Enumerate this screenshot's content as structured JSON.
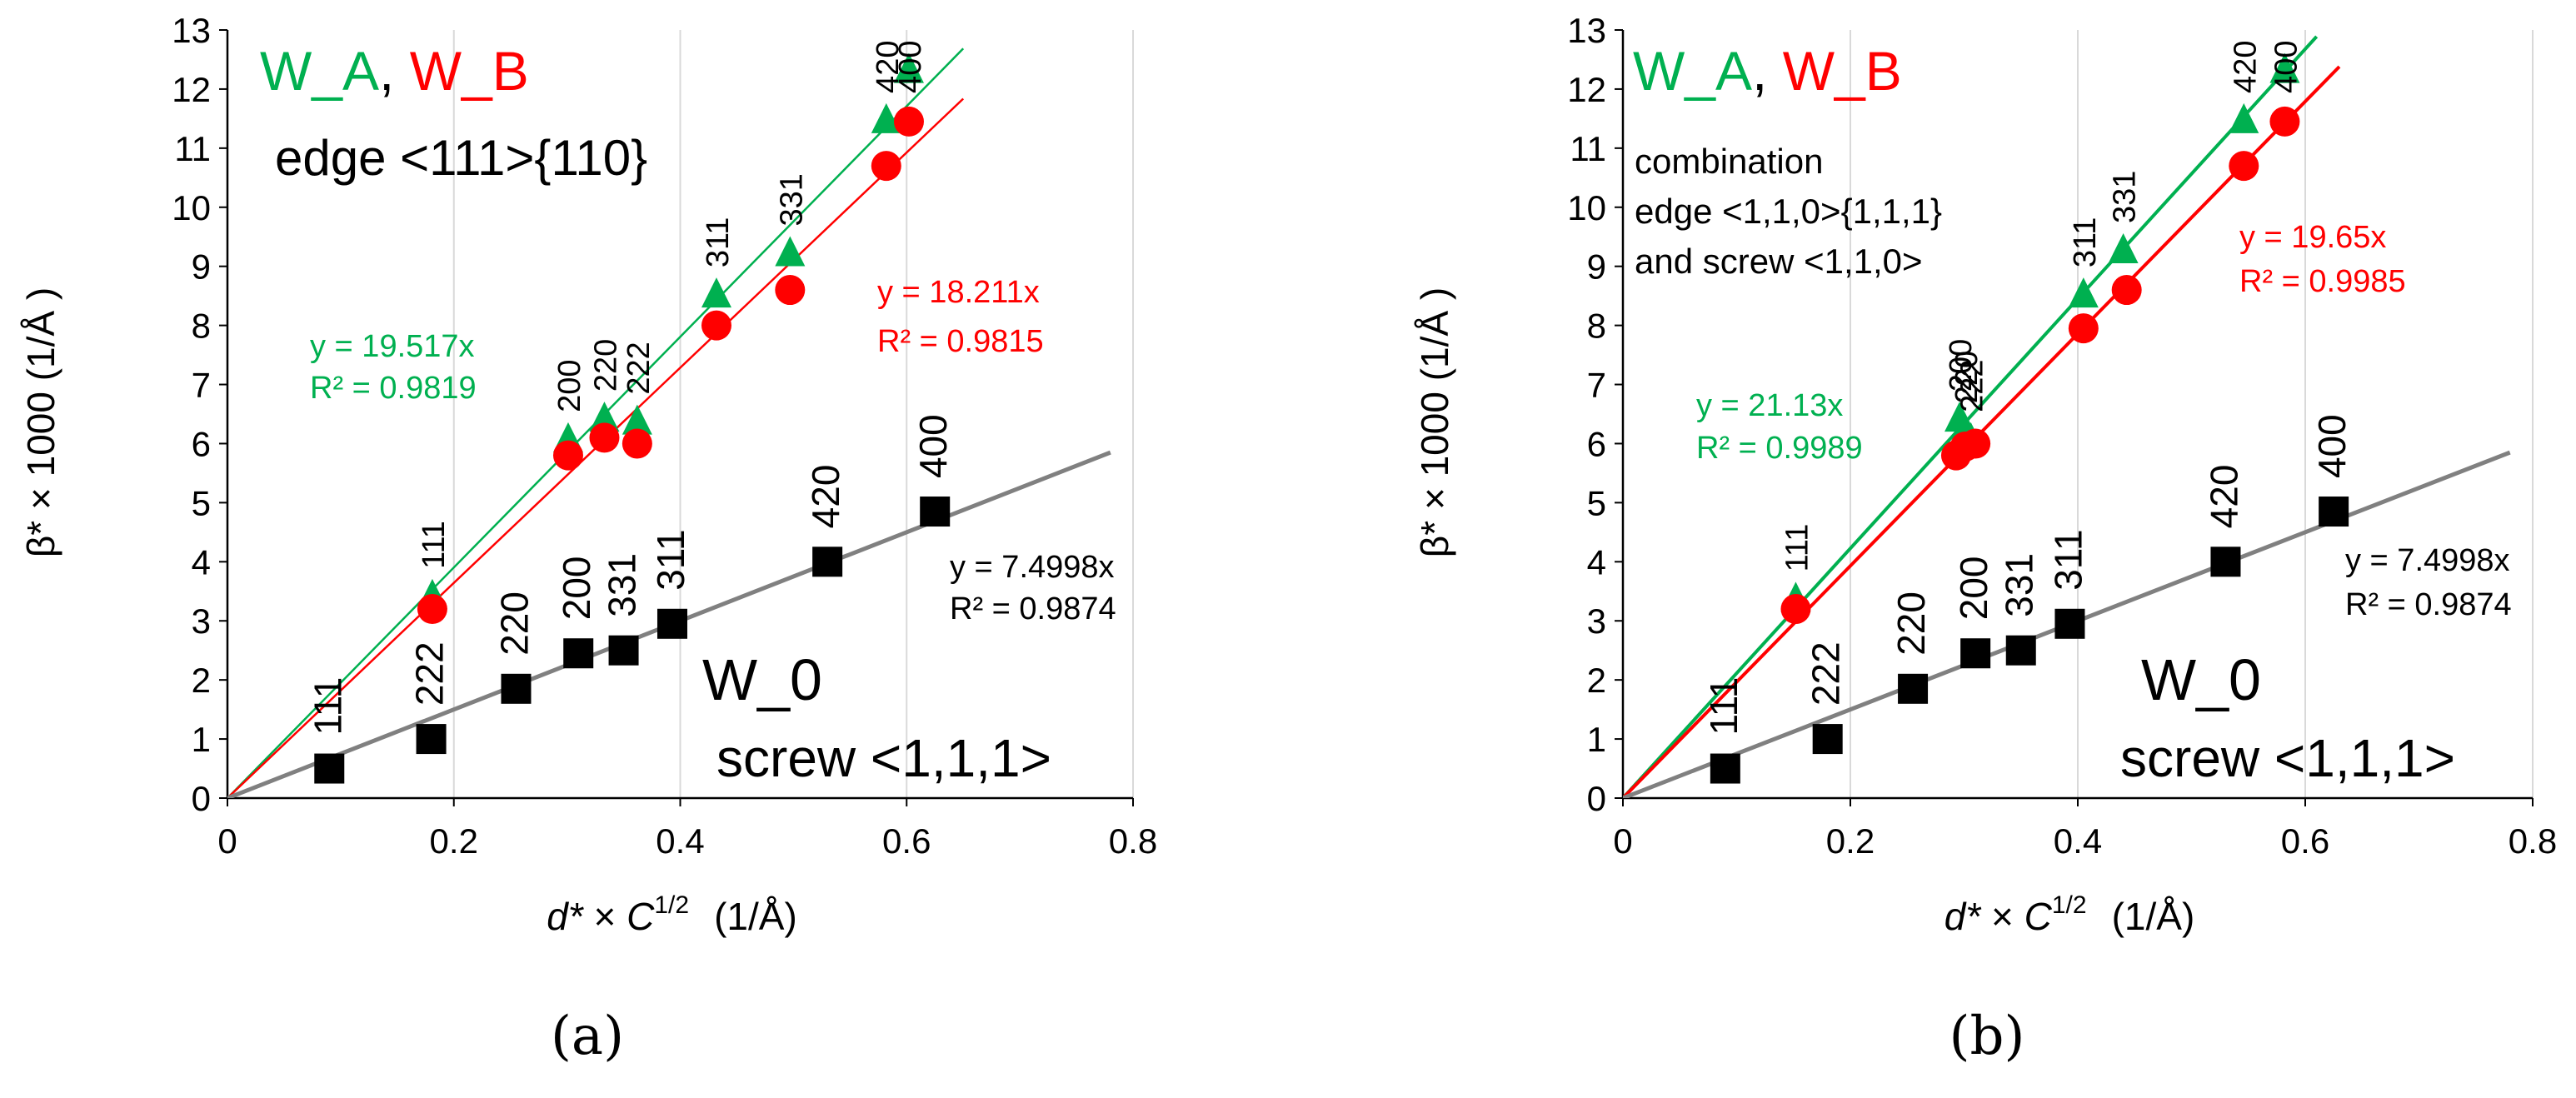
{
  "colors": {
    "green": "#00b050",
    "red": "#ff0000",
    "black": "#000000",
    "gray": "#808080",
    "grid": "#d9d9d9"
  },
  "chart_data": [
    {
      "type": "scatter",
      "panel_label": "(a)",
      "xlabel": {
        "var": "d*",
        "mid": " × ",
        "c": "C",
        "sup": "1/2",
        "unit": "(1/Å)"
      },
      "ylabel": "β* × 1000  (1/Å )",
      "xlim": [
        0,
        0.8
      ],
      "ylim": [
        0,
        13
      ],
      "xticks": [
        0,
        0.2,
        0.4,
        0.6,
        0.8
      ],
      "xtick_labels": [
        "0",
        "0.2",
        "0.4",
        "0.6",
        "0.8"
      ],
      "yticks": [
        0,
        1,
        2,
        3,
        4,
        5,
        6,
        7,
        8,
        9,
        10,
        11,
        12,
        13
      ],
      "grid": "vertical",
      "series": [
        {
          "name": "W_A",
          "color": "green",
          "marker": "triangle",
          "x": [
            0.181,
            0.301,
            0.333,
            0.362,
            0.432,
            0.497,
            0.582,
            0.602
          ],
          "y": [
            3.4,
            6.05,
            6.4,
            6.35,
            8.5,
            9.2,
            11.45,
            12.3
          ],
          "hkl": [
            "111",
            "200",
            "220",
            "222",
            "311",
            "331",
            "420",
            ""
          ],
          "fit": {
            "slope": 19.517,
            "x_end": 0.65,
            "eq": "y = 19.517x",
            "r2": "R² = 0.9819"
          }
        },
        {
          "name": "W_B",
          "color": "red",
          "marker": "circle",
          "x": [
            0.181,
            0.301,
            0.333,
            0.362,
            0.432,
            0.497,
            0.582,
            0.602
          ],
          "y": [
            3.2,
            5.8,
            6.1,
            6.0,
            8.0,
            8.6,
            10.7,
            11.45
          ],
          "hkl": [
            "",
            "",
            "",
            "",
            "",
            "",
            "",
            "400"
          ],
          "fit": {
            "slope": 18.211,
            "x_end": 0.65,
            "eq": "y = 18.211x",
            "r2": "R² = 0.9815"
          }
        },
        {
          "name": "W_0",
          "color": "black",
          "marker": "square",
          "x": [
            0.09,
            0.18,
            0.255,
            0.31,
            0.35,
            0.393,
            0.53,
            0.625
          ],
          "y": [
            0.5,
            1.0,
            1.85,
            2.45,
            2.5,
            2.95,
            4.0,
            4.85
          ],
          "hkl": [
            "111",
            "222",
            "220",
            "200",
            "331",
            "311",
            "420",
            "400"
          ],
          "fit": {
            "slope": 7.4998,
            "x_end": 0.78,
            "eq": "y = 7.4998x",
            "r2": "R² = 0.9874",
            "color": "gray"
          }
        }
      ],
      "annotations": {
        "legend_a": "W_A",
        "legend_sep": ", ",
        "legend_b": "W_B",
        "type_lines": [
          "edge <111>{110}"
        ],
        "w0_title": "W_0",
        "w0_type": "screw <1,1,1>"
      }
    },
    {
      "type": "scatter",
      "panel_label": "(b)",
      "xlabel": {
        "var": "d*",
        "mid": " × ",
        "c": "C",
        "sup": "1/2",
        "unit": "(1/Å)"
      },
      "ylabel": "β* × 1000  (1/Å )",
      "xlim": [
        0,
        0.8
      ],
      "ylim": [
        0,
        13
      ],
      "xticks": [
        0,
        0.2,
        0.4,
        0.6,
        0.8
      ],
      "xtick_labels": [
        "0",
        "0.2",
        "0.4",
        "0.6",
        "0.8"
      ],
      "yticks": [
        0,
        1,
        2,
        3,
        4,
        5,
        6,
        7,
        8,
        9,
        10,
        11,
        12,
        13
      ],
      "grid": "vertical",
      "series": [
        {
          "name": "W_A",
          "color": "green",
          "marker": "triangle",
          "x": [
            0.152,
            0.296,
            0.301,
            0.306,
            0.405,
            0.44,
            0.546,
            0.582
          ],
          "y": [
            3.35,
            6.4,
            6.2,
            6.05,
            8.5,
            9.25,
            11.45,
            12.3
          ],
          "hkl": [
            "111",
            "200",
            "220",
            "222",
            "311",
            "331",
            "420",
            ""
          ],
          "fit": {
            "slope": 21.13,
            "x_end": 0.61,
            "eq": "y = 21.13x",
            "r2": "R² = 0.9989"
          }
        },
        {
          "name": "W_B",
          "color": "red",
          "marker": "circle",
          "x": [
            0.152,
            0.293,
            0.301,
            0.31,
            0.405,
            0.443,
            0.546,
            0.582
          ],
          "y": [
            3.2,
            5.8,
            5.95,
            6.0,
            7.95,
            8.6,
            10.7,
            11.45
          ],
          "hkl": [
            "",
            "",
            "",
            "",
            "",
            "",
            "",
            "400"
          ],
          "fit": {
            "slope": 19.65,
            "x_end": 0.63,
            "eq": "y = 19.65x",
            "r2": "R² = 0.9985"
          }
        },
        {
          "name": "W_0",
          "color": "black",
          "marker": "square",
          "x": [
            0.09,
            0.18,
            0.255,
            0.31,
            0.35,
            0.393,
            0.53,
            0.625
          ],
          "y": [
            0.5,
            1.0,
            1.85,
            2.45,
            2.5,
            2.95,
            4.0,
            4.85
          ],
          "hkl": [
            "111",
            "222",
            "220",
            "200",
            "331",
            "311",
            "420",
            "400"
          ],
          "fit": {
            "slope": 7.4998,
            "x_end": 0.78,
            "eq": "y = 7.4998x",
            "r2": "R² = 0.9874",
            "color": "gray"
          }
        }
      ],
      "annotations": {
        "legend_a": "W_A",
        "legend_sep": ", ",
        "legend_b": "W_B",
        "type_lines": [
          "combination",
          "edge <1,1,0>{1,1,1}",
          "and screw <1,1,0>"
        ],
        "w0_title": "W_0",
        "w0_type": "screw <1,1,1>"
      }
    }
  ]
}
